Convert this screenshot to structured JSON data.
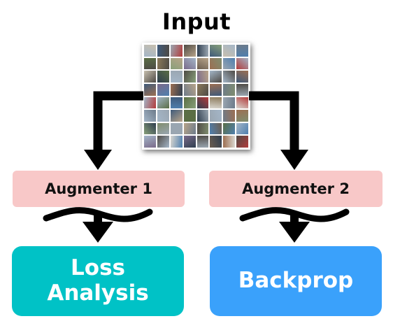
{
  "title": "Input",
  "nodes": {
    "augmenter_1": "Augmenter 1",
    "augmenter_2": "Augmenter 2",
    "loss_analysis": {
      "line1": "Loss",
      "line2": "Analysis"
    },
    "backprop": "Backprop"
  },
  "colors": {
    "augmenter_fill": "#f8c8c8",
    "loss_fill": "#00c2c6",
    "backprop_fill": "#3aa1fb",
    "arrow": "#000000"
  },
  "mosaic_palette": [
    "#6d7b8a",
    "#9aa6b1",
    "#5a6e45",
    "#8c7a5b",
    "#3f5a7a",
    "#b8a489",
    "#7f8d6e",
    "#4e4a45",
    "#a4b6c8",
    "#6b5d4f",
    "#c7bfae",
    "#2f3e4f",
    "#88a07a",
    "#9c6f52",
    "#d9d6cf",
    "#b23b3b",
    "#4f7fae",
    "#7a6a8a"
  ]
}
